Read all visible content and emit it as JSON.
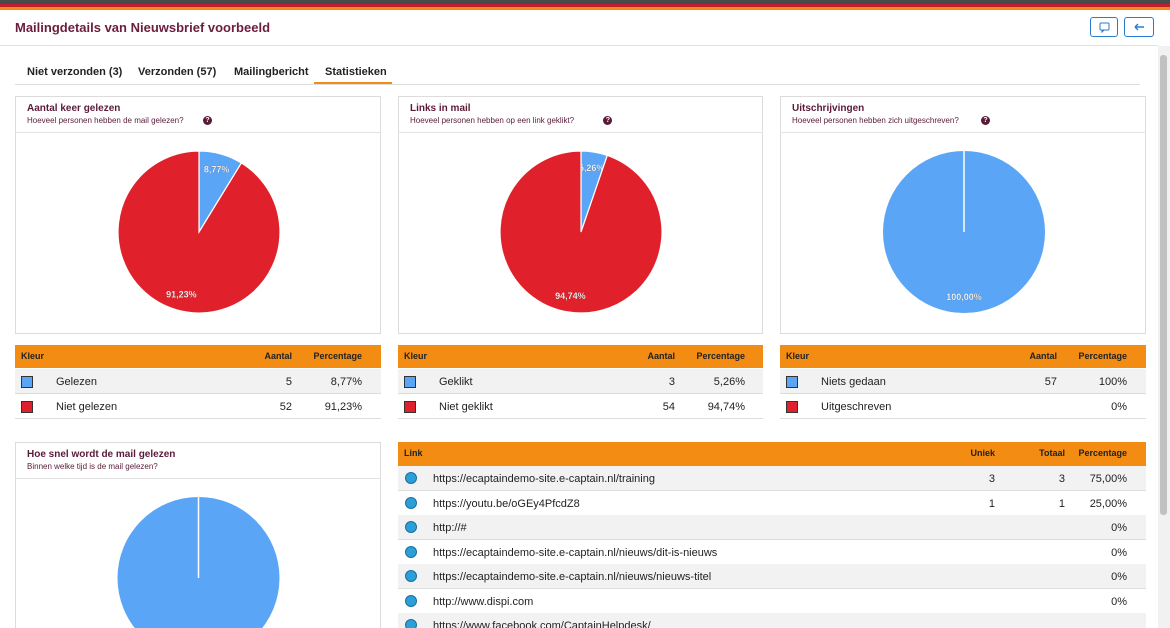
{
  "header": {
    "title": "Mailingdetails van Nieuwsbrief voorbeeld"
  },
  "tabs": [
    "Niet verzonden (3)",
    "Verzonden (57)",
    "Mailingbericht",
    "Statistieken"
  ],
  "panels": [
    {
      "title": "Aantal keer gelezen",
      "subtitle": "Hoeveel personen hebben de mail gelezen?",
      "pie": {
        "values": [
          8.77,
          91.23
        ],
        "value_labels": [
          "8,77%",
          "91,23%"
        ],
        "colors": [
          "#5aa5f5",
          "#e0202a"
        ]
      },
      "table": {
        "columns": [
          "Kleur",
          "Aantal",
          "Percentage"
        ],
        "rows": [
          [
            "Gelezen",
            "5",
            "8,77%"
          ],
          [
            "Niet gelezen",
            "52",
            "91,23%"
          ]
        ]
      }
    },
    {
      "title": "Links in mail",
      "subtitle": "Hoeveel personen hebben op een link geklikt?",
      "pie": {
        "values": [
          5.26,
          94.74
        ],
        "value_labels": [
          "5,26%",
          "94,74%"
        ],
        "colors": [
          "#5aa5f5",
          "#e0202a"
        ]
      },
      "table": {
        "columns": [
          "Kleur",
          "Aantal",
          "Percentage"
        ],
        "rows": [
          [
            "Geklikt",
            "3",
            "5,26%"
          ],
          [
            "Niet geklikt",
            "54",
            "94,74%"
          ]
        ]
      }
    },
    {
      "title": "Uitschrijvingen",
      "subtitle": "Hoeveel personen hebben zich uitgeschreven?",
      "pie": {
        "values": [
          100
        ],
        "value_labels": [
          "100,00%"
        ],
        "colors": [
          "#5aa5f5"
        ]
      },
      "table": {
        "columns": [
          "Kleur",
          "Aantal",
          "Percentage"
        ],
        "rows": [
          [
            "Niets gedaan",
            "57",
            "100%"
          ],
          [
            "Uitgeschreven",
            null,
            "0%"
          ]
        ]
      }
    }
  ],
  "speed": {
    "title": "Hoe snel wordt de mail gelezen",
    "subtitle": "Binnen welke tijd is de mail gelezen?",
    "pie": {
      "values": [
        100
      ],
      "colors": [
        "#5aa5f5"
      ]
    }
  },
  "links": {
    "columns": [
      "Link",
      "Uniek",
      "Totaal",
      "Percentage"
    ],
    "rows": [
      [
        "https://ecaptaindemo-site.e-captain.nl/training",
        "3",
        "3",
        "75,00%"
      ],
      [
        "https://youtu.be/oGEy4PfcdZ8",
        "1",
        "1",
        "25,00%"
      ],
      [
        "http://#",
        null,
        null,
        "0%"
      ],
      [
        "https://ecaptaindemo-site.e-captain.nl/nieuws/dit-is-nieuws",
        null,
        null,
        "0%"
      ],
      [
        "https://ecaptaindemo-site.e-captain.nl/nieuws/nieuws-titel",
        null,
        null,
        "0%"
      ],
      [
        "http://www.dispi.com",
        null,
        null,
        "0%"
      ],
      [
        "https://www.facebook.com/CaptainHelpdesk/",
        null,
        null,
        null
      ]
    ]
  }
}
